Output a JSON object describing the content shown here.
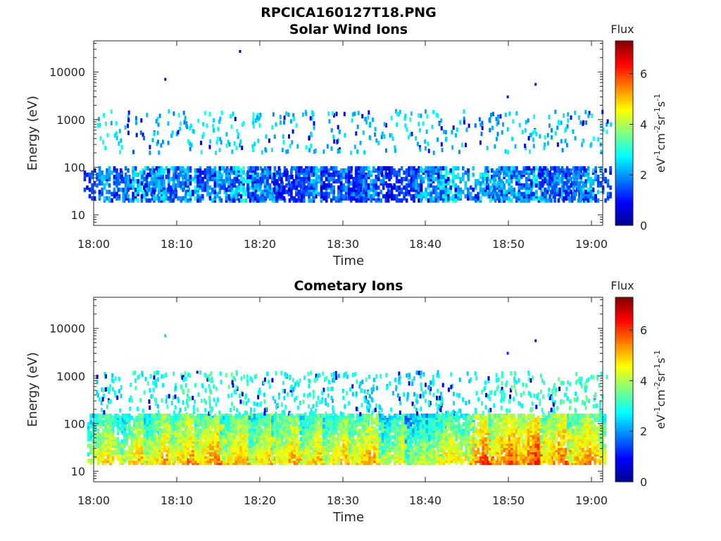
{
  "figure": {
    "main_title": "RPCICA160127T18.PNG"
  },
  "colormap": [
    "#00008f",
    "#0000ff",
    "#0080ff",
    "#00ffff",
    "#80ff80",
    "#ffff00",
    "#ff8000",
    "#ff0000",
    "#800000"
  ],
  "chart_data": [
    {
      "type": "heatmap",
      "title": "Solar Wind Ions",
      "xlabel": "Time",
      "ylabel": "Energy (eV)",
      "x_tick_labels": [
        "18:00",
        "18:10",
        "18:20",
        "18:30",
        "18:40",
        "18:50",
        "19:00"
      ],
      "xlim_minutes": [
        0,
        62
      ],
      "y_scale": "log",
      "y_tick_labels": [
        "10",
        "100",
        "1000",
        "10000"
      ],
      "ylim": [
        6,
        45000
      ],
      "colorbar": {
        "label_top": "Flux",
        "unit_label": "eV-1cm-2sr-1s-1",
        "ticks": [
          "0",
          "2",
          "4",
          "6"
        ],
        "range": [
          0,
          7.3
        ]
      },
      "bursts_minute": [
        1.5,
        5.6,
        8.7,
        11.8,
        15.1,
        18.3,
        21.5,
        24.4,
        27.4,
        30.6,
        33.6,
        37.5,
        40.4,
        43.3,
        47.7,
        50.7,
        53.9,
        57.1,
        60.0
      ],
      "low_energy_band_eV": [
        20,
        100
      ],
      "mid_energy_band_eV": [
        200,
        1500
      ],
      "low_band_flux": [
        2.2,
        2.8,
        2.5,
        2.6,
        2.4,
        2.9,
        2.3,
        1.6,
        2.4,
        2.0,
        2.2,
        1.5,
        2.5,
        2.9,
        2.8,
        2.6,
        2.7,
        2.2,
        2.4
      ],
      "mid_band_flux": [
        2.6,
        2.0,
        2.2,
        2.6,
        2.5,
        2.6,
        2.3,
        2.5,
        2.4,
        2.3,
        2.1,
        2.6,
        2.4,
        2.3,
        2.0,
        2.5,
        2.4,
        2.2,
        2.5
      ],
      "isolated_points": [
        {
          "minute": 8.6,
          "energy": 7000,
          "flux": 0.6
        },
        {
          "minute": 17.7,
          "energy": 27000,
          "flux": 0.5
        },
        {
          "minute": 53.7,
          "energy": 5500,
          "flux": 1.0
        },
        {
          "minute": 50.3,
          "energy": 3000,
          "flux": 0.8
        }
      ]
    },
    {
      "type": "heatmap",
      "title": "Cometary Ions",
      "xlabel": "Time",
      "ylabel": "Energy (eV)",
      "x_tick_labels": [
        "18:00",
        "18:10",
        "18:20",
        "18:30",
        "18:40",
        "18:50",
        "19:00"
      ],
      "xlim_minutes": [
        0,
        62
      ],
      "y_scale": "log",
      "y_tick_labels": [
        "10",
        "100",
        "1000",
        "10000"
      ],
      "ylim": [
        6,
        45000
      ],
      "colorbar": {
        "label_top": "Flux",
        "unit_label": "eV-1cm-2sr-1s-1",
        "ticks": [
          "0",
          "2",
          "4",
          "6"
        ],
        "range": [
          0,
          7.3
        ]
      },
      "bursts_minute": [
        1.5,
        5.6,
        8.7,
        11.8,
        15.1,
        18.3,
        21.5,
        24.4,
        27.4,
        30.6,
        33.6,
        37.5,
        40.4,
        43.3,
        47.7,
        50.7,
        53.9,
        57.1,
        60.0
      ],
      "low_energy_band_eV": [
        15,
        150
      ],
      "mid_energy_band_eV": [
        150,
        1200
      ],
      "low_band_flux": [
        5.0,
        5.2,
        5.3,
        5.6,
        5.7,
        5.4,
        5.2,
        5.3,
        5.2,
        5.3,
        5.4,
        4.8,
        4.5,
        5.0,
        6.0,
        5.9,
        6.2,
        5.8,
        5.6
      ],
      "mid_band_flux": [
        2.8,
        2.9,
        2.9,
        3.1,
        3.1,
        3.0,
        2.8,
        3.0,
        2.9,
        2.7,
        2.6,
        2.6,
        2.6,
        2.7,
        3.0,
        3.0,
        3.1,
        3.2,
        3.1
      ],
      "isolated_points": [
        {
          "minute": 8.6,
          "energy": 7000,
          "flux": 2.4
        },
        {
          "minute": 53.7,
          "energy": 5500,
          "flux": 1.0
        },
        {
          "minute": 50.3,
          "energy": 3000,
          "flux": 1.2
        },
        {
          "minute": 12.5,
          "energy": 1200,
          "flux": 0.4
        }
      ]
    }
  ]
}
